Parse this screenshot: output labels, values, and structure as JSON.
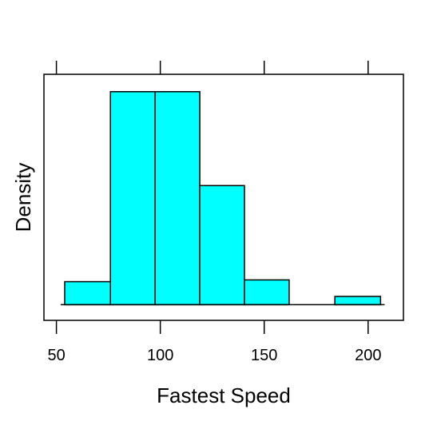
{
  "chart_data": {
    "type": "bar",
    "xlabel": "Fastest Speed",
    "ylabel": "Density",
    "xlim": [
      44,
      217
    ],
    "x_ticks": [
      50,
      100,
      150,
      200
    ],
    "x_tick_labels": [
      "50",
      "100",
      "150",
      "200"
    ],
    "y_ticks_shown": false,
    "bins": [
      {
        "start": 54,
        "end": 76,
        "density": 0.00265
      },
      {
        "start": 76,
        "end": 97.5,
        "density": 0.0245
      },
      {
        "start": 97.5,
        "end": 119,
        "density": 0.0245
      },
      {
        "start": 119,
        "end": 140.5,
        "density": 0.0137
      },
      {
        "start": 140.5,
        "end": 162,
        "density": 0.00285
      },
      {
        "start": 162,
        "end": 184,
        "density": 0
      },
      {
        "start": 184,
        "end": 206,
        "density": 0.00095
      }
    ],
    "ylim": [
      -0.0018,
      0.0265
    ],
    "bar_color": "#00ffff",
    "grid": false
  }
}
